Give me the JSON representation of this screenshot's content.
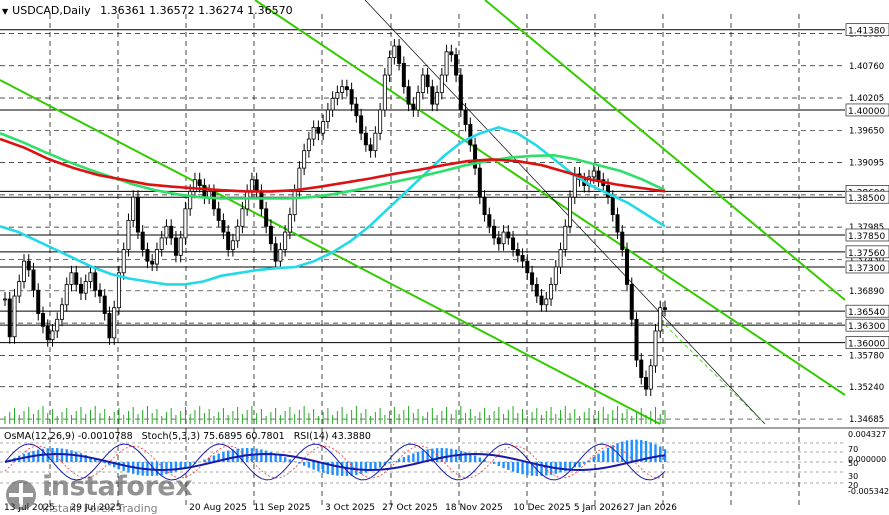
{
  "header": {
    "symbol": "USDCAD,Daily",
    "ohlc": "1.36361 1.36572 1.36274 1.36570"
  },
  "indicators_label": {
    "osma": "OsMA(12,26,9) -0.0010788",
    "stoch": "Stoch(5,3,3) 75.6895 60.7801",
    "rsi": "RSI(14) 43.3880"
  },
  "watermark": {
    "brand": "instaforex",
    "slogan": "Instant Forex Trading"
  },
  "colors": {
    "grid": "#1b1b1b",
    "price_lines": "#000000",
    "channel": "#33cc00",
    "ema_fast": "#22d9e8",
    "ema_mid": "#2ee06a",
    "ema_slow": "#dd1111",
    "osma_bars": "#1e90ff",
    "indicator_line": "#1a1aa8",
    "rsi_line": "#ff3333"
  },
  "chart_data": {
    "type": "candlestick",
    "symbol": "USDCAD",
    "timeframe": "Daily",
    "ylim": [
      1.346,
      1.4165
    ],
    "price_axis_ticks": [
      "1.41315",
      "1.40760",
      "1.40205",
      "1.39650",
      "1.39095",
      "1.38540",
      "1.37985",
      "1.37430",
      "1.36890",
      "1.36335",
      "1.35780",
      "1.35240",
      "1.34685"
    ],
    "level_labels": [
      "1.41380",
      "1.40000",
      "1.38600",
      "1.38500",
      "1.37850",
      "1.37560",
      "1.37300",
      "1.36540",
      "1.36300",
      "1.36000"
    ],
    "x_labels": [
      "13 Jul 2025",
      "29 Jul 2025",
      "20 Aug 2025",
      "11 Sep 2025",
      "3 Oct 2025",
      "27 Oct 2025",
      "18 Nov 2025",
      "10 Dec 2025",
      "5 Jan 2026",
      "27 Jan 2026"
    ],
    "candles_close": [
      1.3675,
      1.361,
      1.368,
      1.3705,
      1.374,
      1.3725,
      1.369,
      1.365,
      1.3628,
      1.3605,
      1.362,
      1.364,
      1.3665,
      1.37,
      1.372,
      1.37,
      1.3685,
      1.3705,
      1.372,
      1.369,
      1.368,
      1.365,
      1.3608,
      1.366,
      1.372,
      1.376,
      1.381,
      1.385,
      1.379,
      1.376,
      1.374,
      1.3735,
      1.376,
      1.378,
      1.38,
      1.378,
      1.375,
      1.378,
      1.383,
      1.386,
      1.388,
      1.387,
      1.385,
      1.386,
      1.383,
      1.381,
      1.379,
      1.376,
      1.3775,
      1.38,
      1.383,
      1.386,
      1.388,
      1.386,
      1.383,
      1.38,
      1.377,
      1.374,
      1.376,
      1.379,
      1.382,
      1.386,
      1.39,
      1.393,
      1.395,
      1.397,
      1.396,
      1.398,
      1.4,
      1.402,
      1.403,
      1.404,
      1.4035,
      1.401,
      1.399,
      1.396,
      1.394,
      1.393,
      1.396,
      1.4,
      1.406,
      1.409,
      1.411,
      1.408,
      1.404,
      1.401,
      1.4,
      1.403,
      1.406,
      1.404,
      1.401,
      1.403,
      1.406,
      1.41,
      1.4095,
      1.406,
      1.4,
      1.3975,
      1.394,
      1.39,
      1.385,
      1.382,
      1.38,
      1.378,
      1.377,
      1.379,
      1.378,
      1.376,
      1.375,
      1.374,
      1.372,
      1.37,
      1.368,
      1.3665,
      1.3675,
      1.37,
      1.373,
      1.376,
      1.38,
      1.385,
      1.389,
      1.388,
      1.387,
      1.3885,
      1.3895,
      1.388,
      1.387,
      1.385,
      1.382,
      1.379,
      1.376,
      1.37,
      1.364,
      1.357,
      1.354,
      1.352,
      1.356,
      1.362,
      1.366,
      1.3657
    ],
    "x_extra": "",
    "series": [
      {
        "name": "",
        "role": "ema_fast",
        "values": [
          1.38,
          1.379,
          1.3775,
          1.376,
          1.3745,
          1.373,
          1.3718,
          1.371,
          1.3705,
          1.37,
          1.37,
          1.3705,
          1.3715,
          1.372,
          1.3725,
          1.3728,
          1.373,
          1.374,
          1.3755,
          1.3775,
          1.38,
          1.383,
          1.386,
          1.389,
          1.392,
          1.3945,
          1.396,
          1.397,
          1.396,
          1.394,
          1.3915,
          1.389,
          1.387,
          1.3855,
          1.384,
          1.382,
          1.38
        ]
      },
      {
        "name": "",
        "role": "ema_mid",
        "values": [
          1.396,
          1.3945,
          1.3928,
          1.3912,
          1.3898,
          1.3885,
          1.3872,
          1.3862,
          1.3855,
          1.385,
          1.3848,
          1.3848,
          1.3848,
          1.3848,
          1.385,
          1.3855,
          1.3862,
          1.387,
          1.3878,
          1.3886,
          1.3895,
          1.3905,
          1.3912,
          1.3918,
          1.3921,
          1.3922,
          1.3915,
          1.3905,
          1.3895,
          1.388,
          1.3862
        ]
      },
      {
        "name": "",
        "role": "ema_slow",
        "values": [
          1.395,
          1.3935,
          1.3915,
          1.39,
          1.3888,
          1.388,
          1.3872,
          1.3868,
          1.3865,
          1.3862,
          1.386,
          1.386,
          1.3862,
          1.3868,
          1.3875,
          1.3882,
          1.389,
          1.3897,
          1.3905,
          1.3912,
          1.3915,
          1.3912,
          1.3905,
          1.3893,
          1.388,
          1.3872,
          1.3866,
          1.386
        ]
      }
    ],
    "sub_axis": [
      "0.004327",
      "0.000000",
      "-0.005342"
    ],
    "sub_levels": [
      "70",
      "50",
      "30",
      "20"
    ]
  }
}
